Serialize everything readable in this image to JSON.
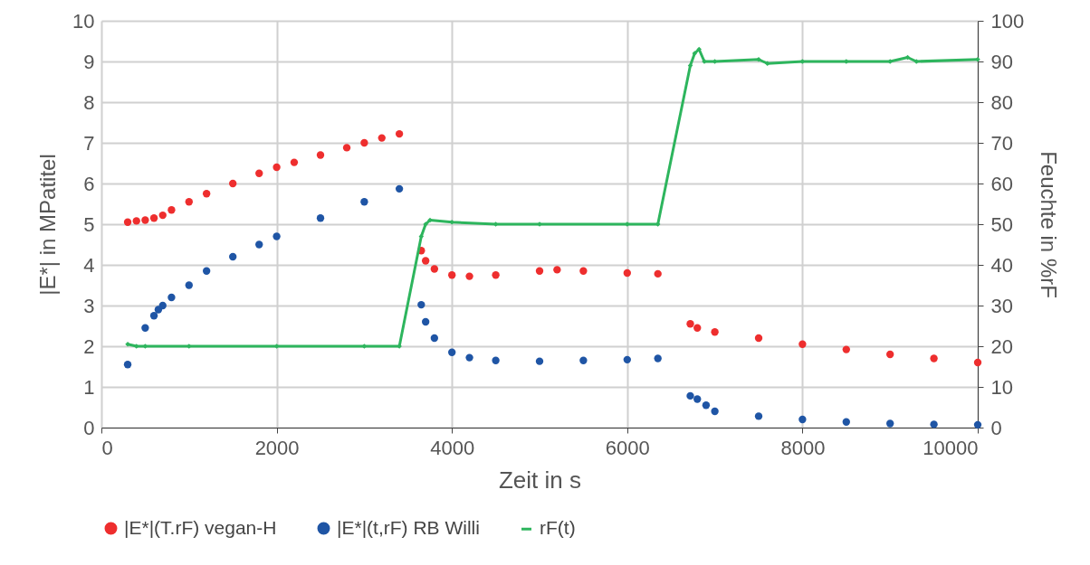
{
  "chart_data": {
    "type": "scatter",
    "xlabel": "Zeit in s",
    "ylabel": "|E*|  in MPatitel",
    "y2label": "Feuchte in %rF",
    "marker": "circle",
    "grid": true,
    "legend": "bottom",
    "xlim": [
      0,
      10000
    ],
    "xticks": [
      0,
      2000,
      4000,
      6000,
      8000,
      10000
    ],
    "ylim": [
      0,
      10
    ],
    "yticks": [
      0,
      1,
      2,
      3,
      4,
      5,
      6,
      7,
      8,
      9,
      10
    ],
    "y2lim": [
      0,
      100
    ],
    "y2ticks": [
      0,
      10,
      20,
      30,
      40,
      50,
      60,
      70,
      80,
      90,
      100
    ],
    "series": [
      {
        "name": "|E*|(T.rF) vegan-H",
        "color": "#ee2e2e",
        "x": [
          300,
          400,
          500,
          600,
          700,
          800,
          1000,
          1200,
          1500,
          1800,
          2000,
          2200,
          2500,
          2800,
          3000,
          3200,
          3400,
          3650,
          3700,
          3800,
          4000,
          4200,
          4500,
          5000,
          5200,
          5500,
          6000,
          6350,
          6720,
          6800,
          7000,
          7500,
          8000,
          8500,
          9000,
          9500,
          10000
        ],
        "values": [
          5.05,
          5.08,
          5.1,
          5.15,
          5.22,
          5.35,
          5.55,
          5.75,
          6.0,
          6.25,
          6.4,
          6.52,
          6.7,
          6.88,
          7.0,
          7.12,
          7.22,
          4.35,
          4.1,
          3.9,
          3.75,
          3.72,
          3.75,
          3.85,
          3.88,
          3.85,
          3.8,
          3.78,
          2.55,
          2.45,
          2.35,
          2.2,
          2.05,
          1.92,
          1.8,
          1.7,
          1.6
        ]
      },
      {
        "name": "|E*|(t,rF) RB Willi",
        "color": "#1f55a5",
        "x": [
          300,
          500,
          600,
          650,
          700,
          800,
          1000,
          1200,
          1500,
          1800,
          2000,
          2500,
          3000,
          3400,
          3650,
          3700,
          3800,
          4000,
          4200,
          4500,
          5000,
          5500,
          6000,
          6350,
          6720,
          6800,
          6900,
          7000,
          7500,
          8000,
          8500,
          9000,
          9500,
          10000
        ],
        "values": [
          1.55,
          2.45,
          2.75,
          2.9,
          3.0,
          3.2,
          3.5,
          3.85,
          4.2,
          4.5,
          4.7,
          5.15,
          5.55,
          5.87,
          3.02,
          2.6,
          2.2,
          1.85,
          1.72,
          1.65,
          1.63,
          1.65,
          1.67,
          1.7,
          0.78,
          0.7,
          0.55,
          0.4,
          0.28,
          0.2,
          0.14,
          0.1,
          0.08,
          0.07
        ]
      },
      {
        "name": "rF(t)",
        "color": "#2db55d",
        "type": "line",
        "axis": "y2",
        "marker": "diamond",
        "x": [
          300,
          400,
          500,
          1000,
          2000,
          3000,
          3400,
          3650,
          3700,
          3750,
          4000,
          4500,
          5000,
          6000,
          6350,
          6720,
          6770,
          6820,
          6880,
          7000,
          7500,
          7600,
          8000,
          8500,
          9000,
          9200,
          9300,
          10000
        ],
        "values": [
          20.5,
          20,
          20,
          20,
          20,
          20,
          20,
          47,
          50,
          51,
          50.5,
          50,
          50,
          50,
          50,
          89,
          92,
          93,
          90,
          90,
          90.5,
          89.5,
          90,
          90,
          90,
          91,
          90,
          90.5
        ]
      }
    ]
  }
}
